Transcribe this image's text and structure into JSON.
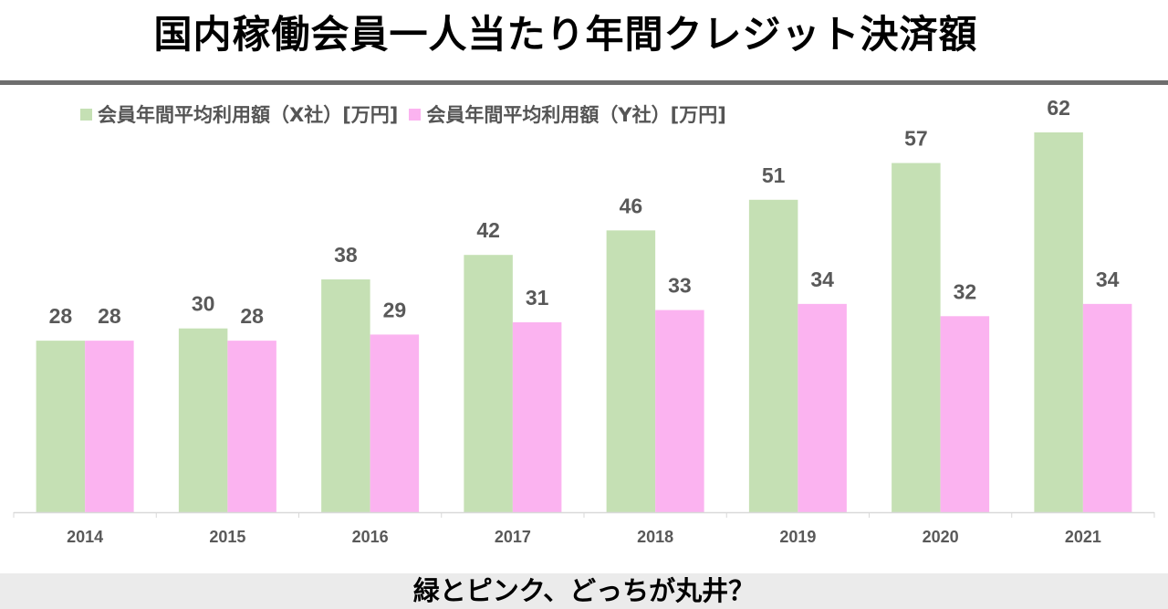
{
  "title": "国内稼働会員一人当たり年間クレジット決済額",
  "footer": "緑とピンク、どっちが丸井？",
  "colors": {
    "x": "#c5e0b4",
    "y": "#fbb3f0",
    "text": "#595959",
    "axis": "#d9d9d9"
  },
  "chart_data": {
    "type": "bar",
    "title": "国内稼働会員一人当たり年間クレジット決済額",
    "categories": [
      "2014",
      "2015",
      "2016",
      "2017",
      "2018",
      "2019",
      "2020",
      "2021"
    ],
    "series": [
      {
        "name": "会員年間平均利用額（X社）[万円]",
        "values": [
          28,
          30,
          38,
          42,
          46,
          51,
          57,
          62
        ]
      },
      {
        "name": "会員年間平均利用額（Y社）[万円]",
        "values": [
          28,
          28,
          29,
          31,
          33,
          34,
          32,
          34
        ]
      }
    ],
    "ylim": [
      0,
      62
    ],
    "legend": "top",
    "grid": false
  }
}
